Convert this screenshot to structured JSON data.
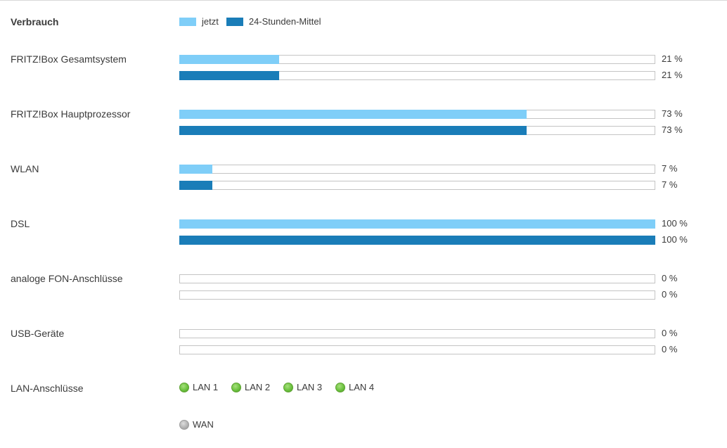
{
  "heading": "Verbrauch",
  "legend": {
    "now_label": "jetzt",
    "avg_label": "24-Stunden-Mittel",
    "now_color": "#7fcef8",
    "avg_color": "#1a7db8"
  },
  "rows": [
    {
      "label": "FRITZ!Box Gesamtsystem",
      "now_value": 21,
      "now_text": "21 %",
      "avg_value": 21,
      "avg_text": "21 %"
    },
    {
      "label": "FRITZ!Box Hauptprozessor",
      "now_value": 73,
      "now_text": "73 %",
      "avg_value": 73,
      "avg_text": "73 %"
    },
    {
      "label": "WLAN",
      "now_value": 7,
      "now_text": "7 %",
      "avg_value": 7,
      "avg_text": "7 %"
    },
    {
      "label": "DSL",
      "now_value": 100,
      "now_text": "100 %",
      "avg_value": 100,
      "avg_text": "100 %"
    },
    {
      "label": "analoge FON-Anschlüsse",
      "now_value": 0,
      "now_text": "0 %",
      "avg_value": 0,
      "avg_text": "0 %"
    },
    {
      "label": "USB-Geräte",
      "now_value": 0,
      "now_text": "0 %",
      "avg_value": 0,
      "avg_text": "0 %"
    }
  ],
  "lan": {
    "label": "LAN-Anschlüsse",
    "ports": [
      {
        "label": "LAN 1",
        "status": "active"
      },
      {
        "label": "LAN 2",
        "status": "active"
      },
      {
        "label": "LAN 3",
        "status": "active"
      },
      {
        "label": "LAN 4",
        "status": "active"
      }
    ],
    "wan": {
      "label": "WAN",
      "status": "inactive"
    }
  }
}
